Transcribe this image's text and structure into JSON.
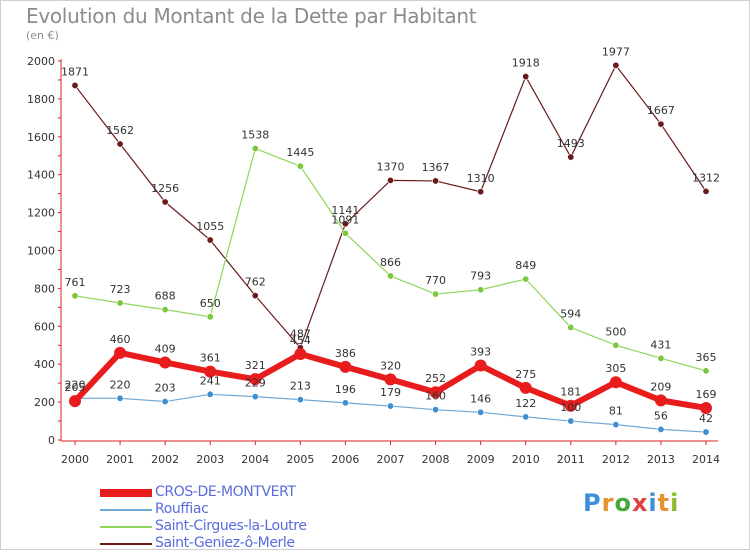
{
  "title": "Evolution du Montant de la Dette par Habitant",
  "unit": "(en €)",
  "logo": {
    "text": "Proxiti",
    "colors": [
      "#3c8fd8",
      "#e8912f",
      "#4aa83a",
      "#e04040",
      "#3c8fd8",
      "#e8912f",
      "#8dbb2a"
    ]
  },
  "chart_data": {
    "type": "line",
    "x": [
      2000,
      2001,
      2002,
      2003,
      2004,
      2005,
      2006,
      2007,
      2008,
      2009,
      2010,
      2011,
      2012,
      2013,
      2014
    ],
    "ylim": [
      0,
      2000
    ],
    "yticks": [
      0,
      200,
      400,
      600,
      800,
      1000,
      1200,
      1400,
      1600,
      1800,
      2000
    ],
    "grid": false,
    "legend": "bottom-left",
    "series": [
      {
        "name": "Saint-Geniez-ô-Merle",
        "color": "#6b1a1a",
        "marker": "#6b1a1a",
        "width": 1.2,
        "r": 3.2,
        "values": [
          1871,
          1562,
          1256,
          1055,
          762,
          487,
          1141,
          1370,
          1367,
          1310,
          1918,
          1493,
          1977,
          1667,
          1312
        ]
      },
      {
        "name": "Saint-Cirgues-la-Loutre",
        "color": "#8fd65a",
        "marker": "#7cc83c",
        "width": 1.2,
        "r": 3.2,
        "values": [
          761,
          723,
          688,
          650,
          1538,
          1445,
          1091,
          866,
          770,
          793,
          849,
          594,
          500,
          431,
          365
        ]
      },
      {
        "name": "Rouffiac",
        "color": "#6fa8d6",
        "marker": "#3f8fd0",
        "width": 1.2,
        "r": 3.2,
        "values": [
          220,
          220,
          203,
          241,
          229,
          213,
          196,
          179,
          160,
          146,
          122,
          100,
          81,
          56,
          42
        ]
      },
      {
        "name": "CROS-DE-MONTVERT",
        "color": "#e81c1c",
        "marker": "#e81c1c",
        "width": 6,
        "r": 6,
        "values": [
          205,
          460,
          409,
          361,
          321,
          454,
          386,
          320,
          252,
          393,
          275,
          181,
          305,
          209,
          169
        ]
      }
    ]
  },
  "legend": [
    {
      "name": "CROS-DE-MONTVERT",
      "color": "#e81c1c",
      "thickness": 8
    },
    {
      "name": "Rouffiac",
      "color": "#6fa8d6",
      "thickness": 2
    },
    {
      "name": "Saint-Cirgues-la-Loutre",
      "color": "#8fd65a",
      "thickness": 2
    },
    {
      "name": "Saint-Geniez-ô-Merle",
      "color": "#6b1a1a",
      "thickness": 2
    }
  ]
}
